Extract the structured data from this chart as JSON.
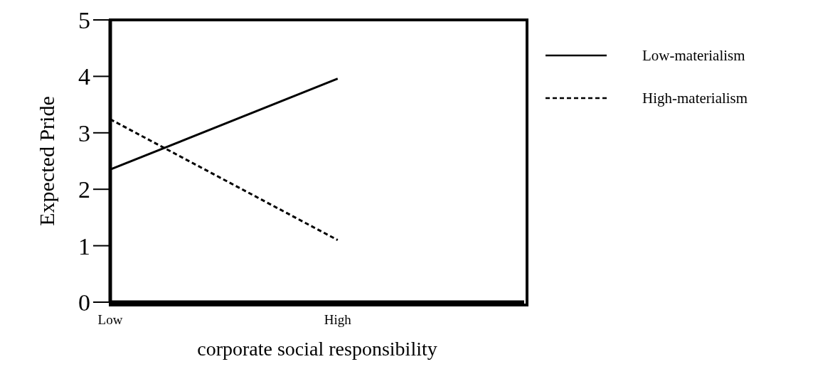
{
  "chart_data": {
    "type": "line",
    "xlabel": "corporate social responsibility",
    "ylabel": "Expected Pride",
    "categories": [
      "Low",
      "High"
    ],
    "series": [
      {
        "name": "Low-materialism",
        "color": "#000000",
        "line_style": "solid",
        "values": [
          2.35,
          3.96
        ]
      },
      {
        "name": "High-materialism",
        "color": "#000000",
        "line_style": "dashed",
        "values": [
          3.24,
          1.1
        ]
      }
    ],
    "ylim": [
      0,
      5
    ],
    "yticks": [
      0,
      1,
      2,
      3,
      4,
      5
    ],
    "grid": false,
    "legend": "right",
    "marker": "none"
  }
}
